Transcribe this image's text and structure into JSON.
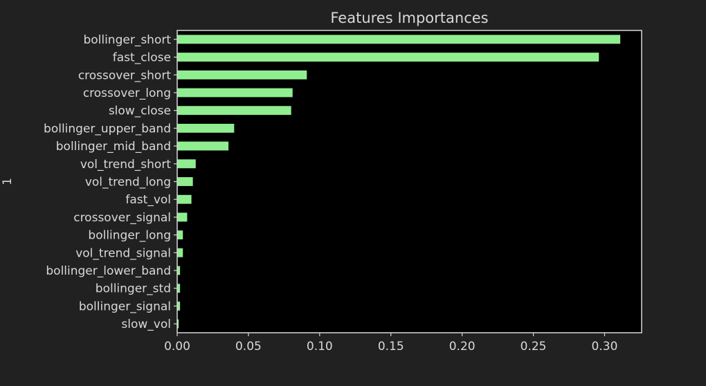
{
  "colors": {
    "page_background": "#212121",
    "plot_background": "#000000",
    "bar": "#90EE90",
    "text": "#D9D9D9",
    "axis": "#D9D9D9"
  },
  "chart_data": {
    "type": "bar",
    "orientation": "horizontal",
    "title": "Features Importances",
    "xlabel": "",
    "ylabel": "1",
    "xlim": [
      0,
      0.326
    ],
    "xticks": [
      0.0,
      0.05,
      0.1,
      0.15,
      0.2,
      0.25,
      0.3
    ],
    "xtick_labels": [
      "0.00",
      "0.05",
      "0.10",
      "0.15",
      "0.20",
      "0.25",
      "0.30"
    ],
    "grid": false,
    "categories": [
      "bollinger_short",
      "fast_close",
      "crossover_short",
      "crossover_long",
      "slow_close",
      "bollinger_upper_band",
      "bollinger_mid_band",
      "vol_trend_short",
      "vol_trend_long",
      "fast_vol",
      "crossover_signal",
      "bollinger_long",
      "vol_trend_signal",
      "bollinger_lower_band",
      "bollinger_std",
      "bollinger_signal",
      "slow_vol"
    ],
    "values": [
      0.311,
      0.296,
      0.091,
      0.081,
      0.08,
      0.04,
      0.036,
      0.013,
      0.011,
      0.01,
      0.007,
      0.004,
      0.004,
      0.002,
      0.002,
      0.002,
      0.001
    ]
  }
}
